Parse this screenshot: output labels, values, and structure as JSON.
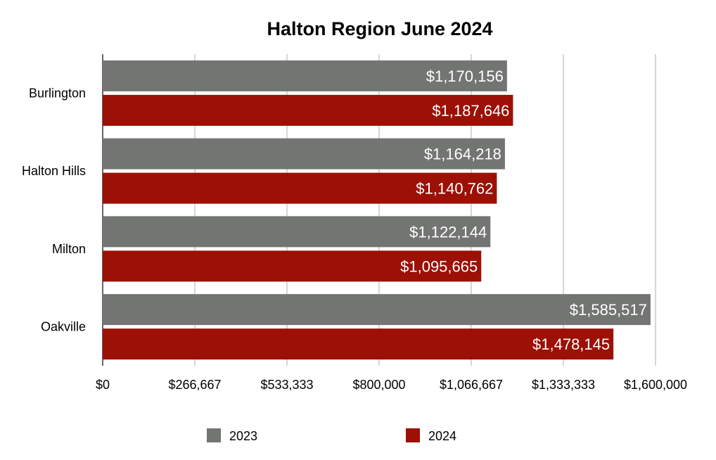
{
  "chart_data": {
    "type": "bar",
    "orientation": "horizontal",
    "title": "Halton Region June 2024",
    "categories": [
      "Burlington",
      "Halton Hills",
      "Milton",
      "Oakville"
    ],
    "series": [
      {
        "name": "2023",
        "color": "#737573",
        "values": [
          1170156,
          1164218,
          1122144,
          1585517
        ],
        "labels": [
          "$1,170,156",
          "$1,164,218",
          "$1,122,144",
          "$1,585,517"
        ]
      },
      {
        "name": "2024",
        "color": "#9c1006",
        "values": [
          1187646,
          1140762,
          1095665,
          1478145
        ],
        "labels": [
          "$1,187,646",
          "$1,140,762",
          "$1,095,665",
          "$1,478,145"
        ]
      }
    ],
    "xlim": [
      0,
      1600000
    ],
    "xticks": [
      0,
      266667,
      533333,
      800000,
      1066667,
      1333333,
      1600000
    ],
    "xtick_labels": [
      "$0",
      "$266,667",
      "$533,333",
      "$800,000",
      "$1,066,667",
      "$1,333,333",
      "$1,600,000"
    ],
    "grid": true,
    "legend_position": "bottom"
  }
}
